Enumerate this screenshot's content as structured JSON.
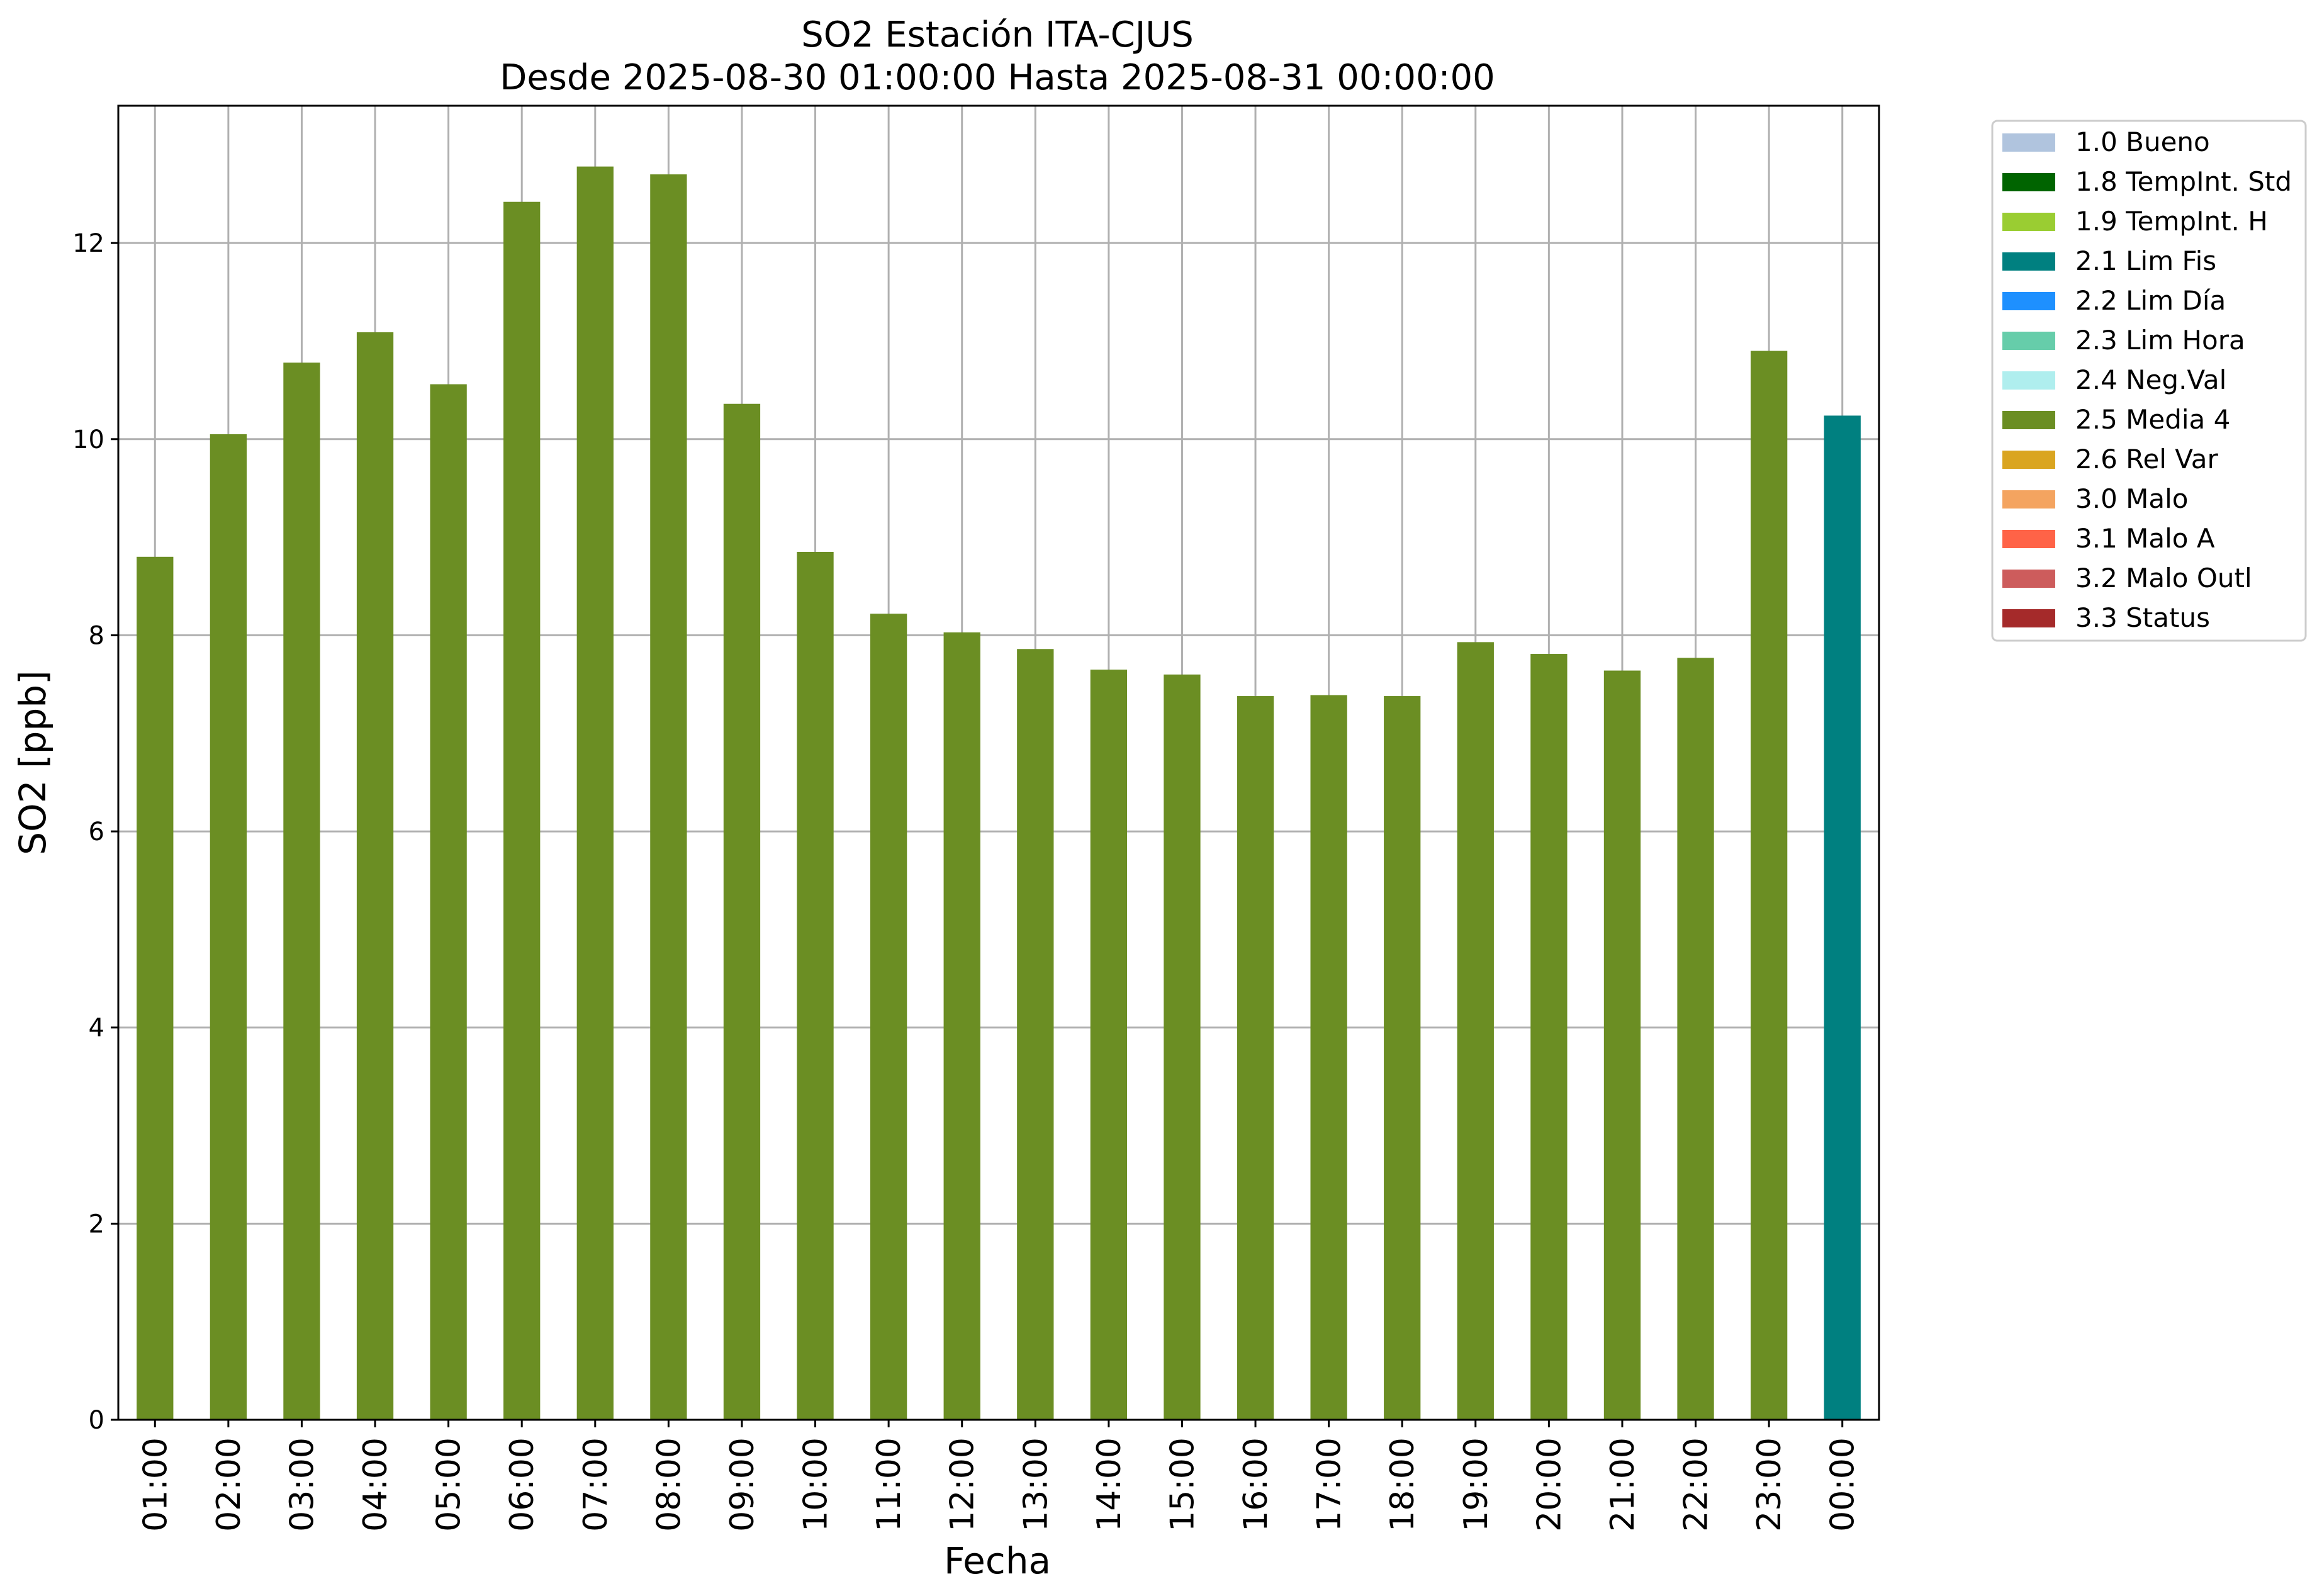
{
  "chart_data": {
    "type": "bar",
    "title": "SO2 Estación ITA-CJUS",
    "subtitle": "Desde 2025-08-30 01:00:00 Hasta 2025-08-31 00:00:00",
    "xlabel": "Fecha",
    "ylabel": "SO2 [ppb]",
    "ylim": [
      0,
      13.4
    ],
    "yticks": [
      "0",
      "2",
      "4",
      "6",
      "8",
      "10",
      "12"
    ],
    "grid": true,
    "legend_position": "outside-right-top",
    "categories": [
      "01:00",
      "02:00",
      "03:00",
      "04:00",
      "05:00",
      "06:00",
      "07:00",
      "08:00",
      "09:00",
      "10:00",
      "11:00",
      "12:00",
      "13:00",
      "14:00",
      "15:00",
      "16:00",
      "17:00",
      "18:00",
      "19:00",
      "20:00",
      "21:00",
      "22:00",
      "23:00",
      "00:00"
    ],
    "values": [
      8.8,
      10.05,
      10.78,
      11.09,
      10.56,
      12.42,
      12.78,
      12.7,
      10.36,
      8.85,
      8.22,
      8.03,
      7.86,
      7.65,
      7.6,
      7.38,
      7.39,
      7.38,
      7.93,
      7.81,
      7.64,
      7.77,
      10.9,
      10.24
    ],
    "flags": [
      "2.5",
      "2.5",
      "2.5",
      "2.5",
      "2.5",
      "2.5",
      "2.5",
      "2.5",
      "2.5",
      "2.5",
      "2.5",
      "2.5",
      "2.5",
      "2.5",
      "2.5",
      "2.5",
      "2.5",
      "2.5",
      "2.5",
      "2.5",
      "2.5",
      "2.5",
      "2.5",
      "2.1"
    ],
    "legend": [
      {
        "code": "1.0",
        "label": "1.0 Bueno",
        "color": "#b0c4de"
      },
      {
        "code": "1.8",
        "label": "1.8 TempInt. Std",
        "color": "#006400"
      },
      {
        "code": "1.9",
        "label": "1.9 TempInt. H",
        "color": "#9acd32"
      },
      {
        "code": "2.1",
        "label": "2.1 Lim Fis",
        "color": "#008080"
      },
      {
        "code": "2.2",
        "label": "2.2 Lim Día",
        "color": "#1e90ff"
      },
      {
        "code": "2.3",
        "label": "2.3 Lim Hora",
        "color": "#66cdaa"
      },
      {
        "code": "2.4",
        "label": "2.4 Neg.Val",
        "color": "#afeeee"
      },
      {
        "code": "2.5",
        "label": "2.5 Media 4",
        "color": "#6b8e23"
      },
      {
        "code": "2.6",
        "label": "2.6 Rel Var",
        "color": "#daa520"
      },
      {
        "code": "3.0",
        "label": "3.0 Malo",
        "color": "#f4a460"
      },
      {
        "code": "3.1",
        "label": "3.1 Malo A",
        "color": "#ff6347"
      },
      {
        "code": "3.2",
        "label": "3.2 Malo Outl",
        "color": "#cd5c5c"
      },
      {
        "code": "3.3",
        "label": "3.3 Status",
        "color": "#a52a2a"
      }
    ]
  }
}
